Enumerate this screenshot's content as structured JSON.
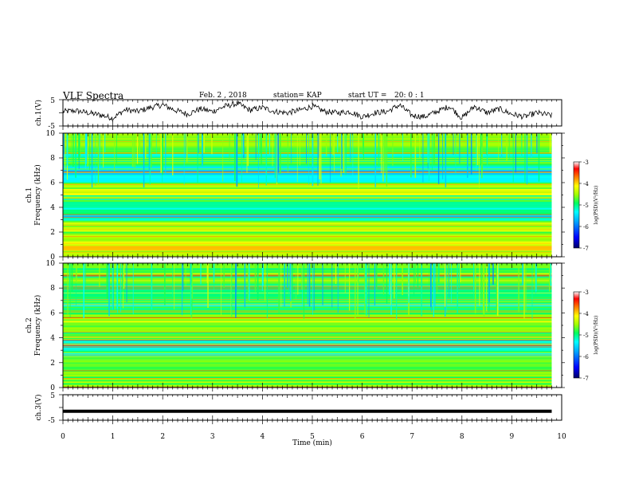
{
  "header": {
    "title": "VLF Spectra",
    "date": "Feb. 2 , 2018",
    "station": "station= KAP",
    "start": "start UT =",
    "start_time": "20: 0 : 1"
  },
  "colors": {
    "background": "#ffffff",
    "axes": "#000000",
    "colormap": [
      "#000066",
      "#0000ff",
      "#00a0ff",
      "#00ffff",
      "#00ff60",
      "#a0ff00",
      "#ffff00",
      "#ff8000",
      "#ff0000",
      "#ffffff"
    ]
  },
  "chart_data": [
    {
      "type": "line",
      "name": "ch1-waveform",
      "ylabel": "ch.1(V)",
      "ylim": [
        -5,
        5
      ],
      "yticks": [
        "5",
        "-5"
      ],
      "xlim": [
        0,
        10
      ],
      "x": [
        0,
        0.25,
        0.5,
        0.75,
        1.0,
        1.25,
        1.5,
        1.75,
        2.0,
        2.25,
        2.5,
        2.75,
        3.0,
        3.25,
        3.5,
        3.75,
        4.0,
        4.25,
        4.5,
        4.75,
        5.0,
        5.25,
        5.5,
        5.75,
        6.0,
        6.25,
        6.5,
        6.75,
        7.0,
        7.25,
        7.5,
        7.75,
        8.0,
        8.25,
        8.5,
        8.75,
        9.0,
        9.25,
        9.5,
        9.8
      ],
      "y": [
        0.5,
        0.8,
        0.0,
        -0.8,
        -2.0,
        1.2,
        0.5,
        2.0,
        3.0,
        1.0,
        -0.5,
        1.5,
        0.5,
        2.5,
        3.5,
        1.0,
        2.0,
        0.5,
        0.0,
        1.0,
        2.5,
        0.5,
        0.0,
        0.5,
        -1.5,
        0.0,
        0.5,
        3.0,
        -1.0,
        -1.5,
        0.5,
        2.5,
        -2.0,
        2.5,
        0.0,
        1.5,
        -0.5,
        -1.5,
        0.0,
        -1.0
      ]
    },
    {
      "type": "heatmap",
      "name": "ch1-spectrogram",
      "ylabel": "ch.1",
      "ylabel2": "Frequency (kHz)",
      "ylim": [
        0,
        10
      ],
      "yticks": [
        "0",
        "2",
        "4",
        "6",
        "8",
        "10"
      ],
      "xlim": [
        0,
        10
      ],
      "colorbar": {
        "label": "log(PSD)(V²/Hz)",
        "range": [
          -7,
          -3
        ],
        "ticks": [
          "-3",
          "-4",
          "-5",
          "-6",
          "-7"
        ]
      },
      "freq_kHz": [
        0,
        0.5,
        1.0,
        1.5,
        2.0,
        2.5,
        3.0,
        3.5,
        4.0,
        4.5,
        5.0,
        5.5,
        6.0,
        6.5,
        7.0,
        7.5,
        8.0,
        8.5,
        9.0,
        9.5
      ],
      "mean_level": [
        -4.6,
        -4.4,
        -4.6,
        -4.8,
        -4.5,
        -4.7,
        -5.7,
        -5.5,
        -5.3,
        -5.2,
        -4.6,
        -5.0,
        -5.4,
        -5.8,
        -5.6,
        -5.2,
        -5.3,
        -5.2,
        -5.0,
        -5.0
      ]
    },
    {
      "type": "heatmap",
      "name": "ch2-spectrogram",
      "ylabel": "ch.2",
      "ylabel2": "Frequency (kHz)",
      "ylim": [
        0,
        10
      ],
      "yticks": [
        "0",
        "2",
        "4",
        "6",
        "8",
        "10"
      ],
      "xlim": [
        0,
        10
      ],
      "colorbar": {
        "label": "log(PSD)(V²/Hz)",
        "range": [
          -7,
          -3
        ],
        "ticks": [
          "-3",
          "-4",
          "-5",
          "-6",
          "-7"
        ]
      },
      "freq_kHz": [
        0,
        0.5,
        1.0,
        1.5,
        2.0,
        2.5,
        3.0,
        3.5,
        4.0,
        4.5,
        5.0,
        5.5,
        6.0,
        6.5,
        7.0,
        7.5,
        8.0,
        8.5,
        9.0,
        9.5
      ],
      "mean_level": [
        -4.8,
        -4.9,
        -5.0,
        -5.2,
        -5.0,
        -5.3,
        -5.7,
        -5.5,
        -5.2,
        -5.0,
        -4.7,
        -4.9,
        -5.3,
        -5.4,
        -5.3,
        -5.1,
        -5.2,
        -5.1,
        -5.0,
        -5.0
      ]
    },
    {
      "type": "line",
      "name": "ch3-waveform",
      "ylabel": "ch.3(V)",
      "ylim": [
        -5,
        5
      ],
      "yticks": [
        "5",
        "-5"
      ],
      "xlim": [
        0,
        10
      ],
      "x": [
        0,
        9.8
      ],
      "y": [
        -1.5,
        -1.5
      ],
      "xlabel": "Time (min)",
      "xticks": [
        "0",
        "1",
        "2",
        "3",
        "4",
        "5",
        "6",
        "7",
        "8",
        "9",
        "10"
      ]
    }
  ]
}
